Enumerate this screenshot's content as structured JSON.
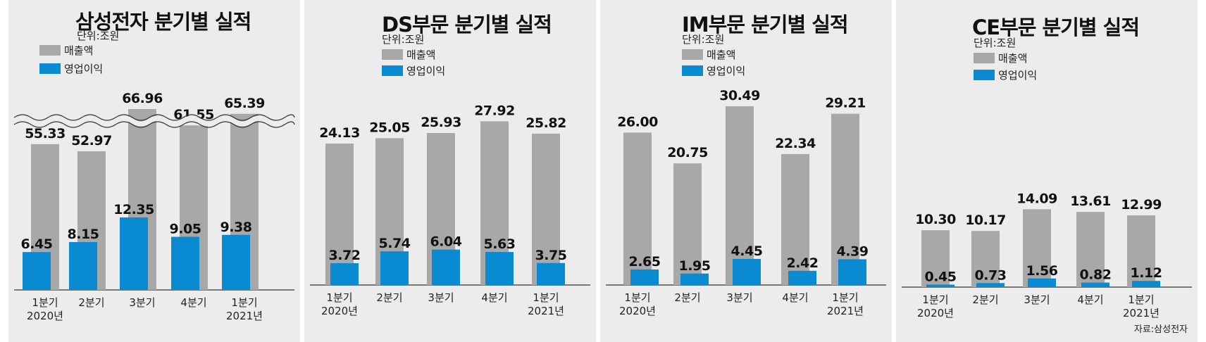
{
  "legend": {
    "revenue": "매출액",
    "profit": "영업이익"
  },
  "unit": "단위:조원",
  "source": "자료:삼성전자",
  "colors": {
    "revenue": "#a8a8a8",
    "profit": "#0a8ad0",
    "background": "#ececec"
  },
  "chart_data": [
    {
      "type": "bar",
      "title": "삼성전자 분기별 실적",
      "unit": "단위:조원",
      "categories": [
        [
          "1분기",
          "2020년"
        ],
        [
          "2분기"
        ],
        [
          "3분기"
        ],
        [
          "4분기"
        ],
        [
          "1분기",
          "2021년"
        ]
      ],
      "axis_break": true,
      "series": [
        {
          "name": "매출액",
          "values": [
            55.33,
            52.97,
            66.96,
            61.55,
            65.39
          ]
        },
        {
          "name": "영업이익",
          "values": [
            6.45,
            8.15,
            12.35,
            9.05,
            9.38
          ]
        }
      ]
    },
    {
      "type": "bar",
      "title": "DS부문 분기별 실적",
      "unit": "단위:조원",
      "categories": [
        [
          "1분기",
          "2020년"
        ],
        [
          "2분기"
        ],
        [
          "3분기"
        ],
        [
          "4분기"
        ],
        [
          "1분기",
          "2021년"
        ]
      ],
      "series": [
        {
          "name": "매출액",
          "values": [
            24.13,
            25.05,
            25.93,
            27.92,
            25.82
          ]
        },
        {
          "name": "영업이익",
          "values": [
            3.72,
            5.74,
            6.04,
            5.63,
            3.75
          ]
        }
      ]
    },
    {
      "type": "bar",
      "title": "IM부문 분기별 실적",
      "unit": "단위:조원",
      "categories": [
        [
          "1분기",
          "2020년"
        ],
        [
          "2분기"
        ],
        [
          "3분기"
        ],
        [
          "4분기"
        ],
        [
          "1분기",
          "2021년"
        ]
      ],
      "series": [
        {
          "name": "매출액",
          "values": [
            26.0,
            20.75,
            30.49,
            22.34,
            29.21
          ]
        },
        {
          "name": "영업이익",
          "values": [
            2.65,
            1.95,
            4.45,
            2.42,
            4.39
          ]
        }
      ]
    },
    {
      "type": "bar",
      "title": "CE부문 분기별 실적",
      "unit": "단위:조원",
      "categories": [
        [
          "1분기",
          "2020년"
        ],
        [
          "2분기"
        ],
        [
          "3분기"
        ],
        [
          "4분기"
        ],
        [
          "1분기",
          "2021년"
        ]
      ],
      "series": [
        {
          "name": "매출액",
          "values": [
            10.3,
            10.17,
            14.09,
            13.61,
            12.99
          ]
        },
        {
          "name": "영업이익",
          "values": [
            0.45,
            0.73,
            1.56,
            0.82,
            1.12
          ]
        }
      ]
    }
  ]
}
